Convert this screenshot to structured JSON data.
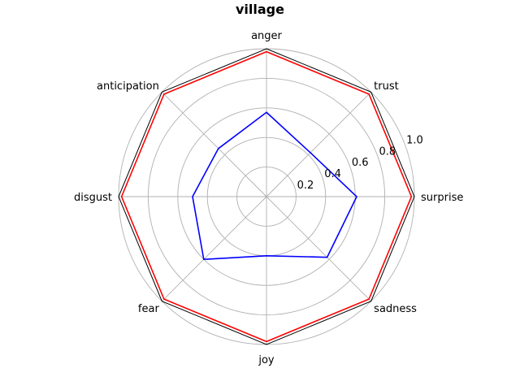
{
  "chart_data": {
    "type": "radar",
    "title": "village",
    "axes": [
      "anger",
      "trust",
      "surprise",
      "sadness",
      "joy",
      "fear",
      "disgust",
      "anticipation"
    ],
    "rlim": [
      0,
      1.0
    ],
    "r_ticks": [
      0.2,
      0.4,
      0.6,
      0.8,
      1.0
    ],
    "r_tick_labels": [
      "0.2",
      "0.4",
      "0.6",
      "0.8",
      "1.0"
    ],
    "grid": true,
    "series": [
      {
        "color": "#ff0000",
        "values": [
          0.98,
          0.98,
          0.98,
          0.98,
          0.98,
          0.98,
          0.98,
          0.98
        ]
      },
      {
        "color": "#0000ff",
        "values": [
          0.57,
          0.42,
          0.61,
          0.58,
          0.4,
          0.6,
          0.5,
          0.46
        ]
      }
    ],
    "frame_color": "#000000",
    "grid_color": "#b0b0b0"
  }
}
